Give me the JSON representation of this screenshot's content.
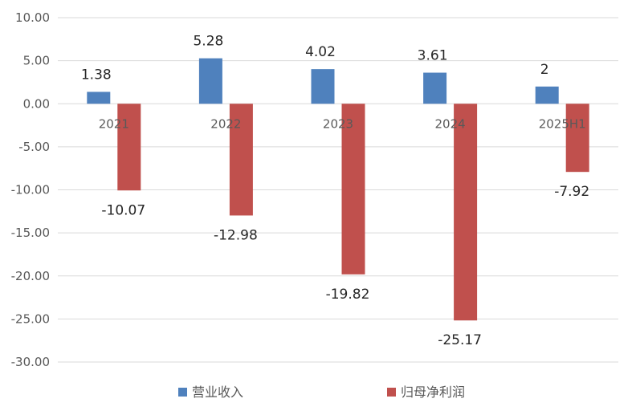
{
  "chart_data": {
    "type": "bar",
    "categories": [
      "2021",
      "2022",
      "2023",
      "2024",
      "2025H1"
    ],
    "series": [
      {
        "name": "营业收入",
        "values": [
          1.38,
          5.28,
          4.02,
          3.61,
          2
        ],
        "labels": [
          "1.38",
          "5.28",
          "4.02",
          "3.61",
          "2"
        ],
        "color": "#4F81BD"
      },
      {
        "name": "归母净利润",
        "values": [
          -10.07,
          -12.98,
          -19.82,
          -25.17,
          -7.92
        ],
        "labels": [
          "-10.07",
          "-12.98",
          "-19.82",
          "-25.17",
          "-7.92"
        ],
        "color": "#C0504D"
      }
    ],
    "ylim": [
      -30,
      10
    ],
    "yticks": [
      10,
      5,
      0,
      -5,
      -10,
      -15,
      -20,
      -25,
      -30
    ],
    "ytick_labels": [
      "10.00",
      "5.00",
      "0.00",
      "-5.00",
      "-10.00",
      "-15.00",
      "-20.00",
      "-25.00",
      "-30.00"
    ],
    "title": "",
    "xlabel": "",
    "ylabel": "",
    "grid": true,
    "legend_position": "bottom",
    "colors": {
      "gridline": "#D9D9D9",
      "axis_text": "#595959",
      "label_text": "#262626"
    }
  }
}
